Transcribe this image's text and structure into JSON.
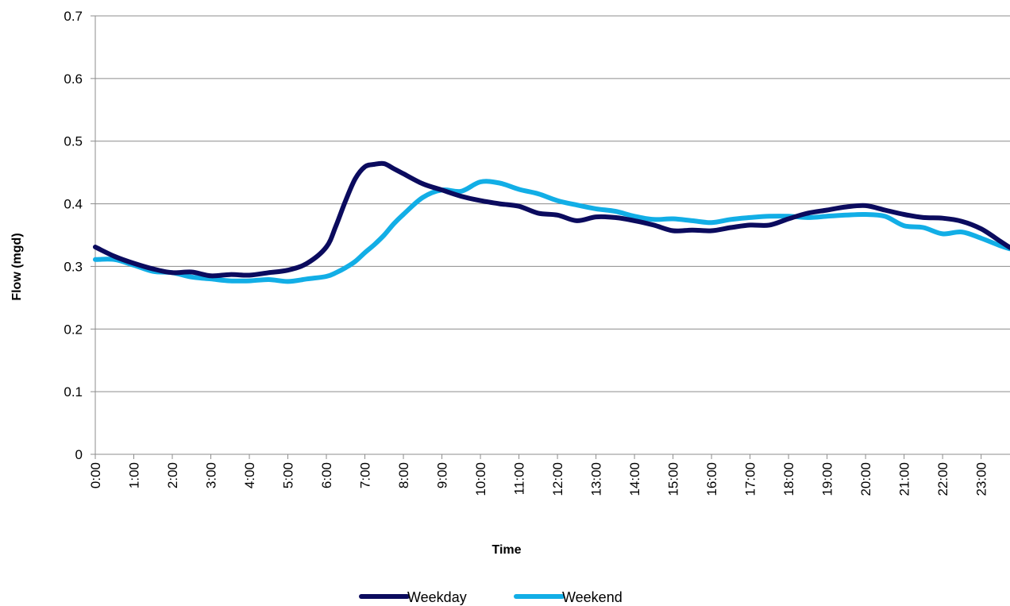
{
  "chart_data": {
    "type": "line",
    "title": "",
    "xlabel": "Time",
    "ylabel": "Flow (mgd)",
    "ylim": [
      0,
      0.7
    ],
    "yticks": [
      "0",
      "0.1",
      "0.2",
      "0.3",
      "0.4",
      "0.5",
      "0.6",
      "0.7"
    ],
    "xticks": [
      "0:00",
      "1:00",
      "2:00",
      "3:00",
      "4:00",
      "5:00",
      "6:00",
      "7:00",
      "8:00",
      "9:00",
      "10:00",
      "11:00",
      "12:00",
      "13:00",
      "14:00",
      "15:00",
      "16:00",
      "17:00",
      "18:00",
      "19:00",
      "20:00",
      "21:00",
      "22:00",
      "23:00"
    ],
    "grid": "horizontal",
    "legend_position": "bottom",
    "x_hours": [
      0,
      0.5,
      1,
      1.5,
      2,
      2.5,
      3,
      3.5,
      4,
      4.5,
      5,
      5.5,
      6,
      6.25,
      6.5,
      6.75,
      7,
      7.25,
      7.5,
      7.75,
      8,
      8.5,
      9,
      9.5,
      10,
      10.5,
      11,
      11.5,
      12,
      12.5,
      13,
      13.5,
      14,
      14.5,
      15,
      15.5,
      16,
      16.5,
      17,
      17.5,
      18,
      18.5,
      19,
      19.5,
      20,
      20.5,
      21,
      21.5,
      22,
      22.5,
      23,
      23.5,
      23.75
    ],
    "series": [
      {
        "name": "Weekday",
        "color": "#0b0b5e",
        "values": [
          0.331,
          0.316,
          0.305,
          0.296,
          0.29,
          0.291,
          0.285,
          0.287,
          0.286,
          0.29,
          0.294,
          0.305,
          0.331,
          0.365,
          0.405,
          0.44,
          0.459,
          0.463,
          0.464,
          0.456,
          0.448,
          0.432,
          0.422,
          0.412,
          0.405,
          0.4,
          0.396,
          0.385,
          0.382,
          0.373,
          0.379,
          0.378,
          0.373,
          0.366,
          0.357,
          0.358,
          0.357,
          0.362,
          0.366,
          0.366,
          0.376,
          0.385,
          0.39,
          0.395,
          0.397,
          0.39,
          0.383,
          0.378,
          0.377,
          0.372,
          0.36,
          0.34,
          0.33
        ]
      },
      {
        "name": "Weekend",
        "color": "#12aee6",
        "values": [
          0.311,
          0.311,
          0.302,
          0.292,
          0.29,
          0.283,
          0.28,
          0.277,
          0.277,
          0.279,
          0.276,
          0.28,
          0.284,
          0.29,
          0.298,
          0.308,
          0.322,
          0.335,
          0.35,
          0.368,
          0.383,
          0.41,
          0.422,
          0.42,
          0.435,
          0.433,
          0.423,
          0.416,
          0.405,
          0.398,
          0.392,
          0.388,
          0.38,
          0.375,
          0.376,
          0.373,
          0.37,
          0.375,
          0.378,
          0.38,
          0.38,
          0.378,
          0.38,
          0.382,
          0.383,
          0.38,
          0.365,
          0.362,
          0.352,
          0.355,
          0.345,
          0.333,
          0.328
        ]
      }
    ]
  }
}
